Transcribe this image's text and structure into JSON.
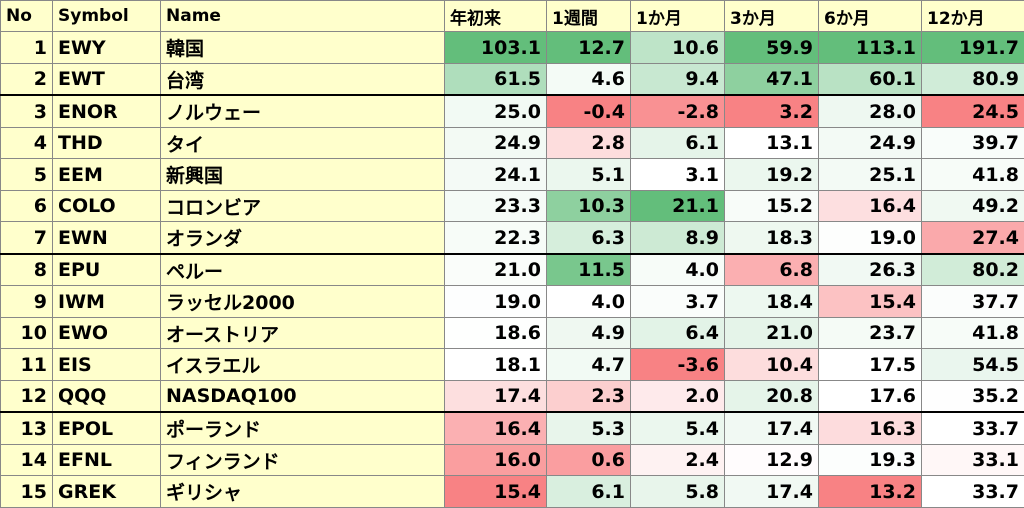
{
  "table": {
    "header": [
      "No",
      "Symbol",
      "Name",
      "年初来",
      "1週間",
      "1か月",
      "3か月",
      "6か月",
      "12か月"
    ],
    "rows": [
      [
        "1",
        "EWY",
        "韓国",
        "103.1",
        "12.7",
        "10.6",
        "59.9",
        "113.1",
        "191.7"
      ],
      [
        "2",
        "EWT",
        "台湾",
        "61.5",
        "4.6",
        "9.4",
        "47.1",
        "60.1",
        "80.9"
      ],
      [
        "3",
        "ENOR",
        "ノルウェー",
        "25.0",
        "-0.4",
        "-2.8",
        "3.2",
        "28.0",
        "24.5"
      ],
      [
        "4",
        "THD",
        "タイ",
        "24.9",
        "2.8",
        "6.1",
        "13.1",
        "24.9",
        "39.7"
      ],
      [
        "5",
        "EEM",
        "新興国",
        "24.1",
        "5.1",
        "3.1",
        "19.2",
        "25.1",
        "41.8"
      ],
      [
        "6",
        "COLO",
        "コロンビア",
        "23.3",
        "10.3",
        "21.1",
        "15.2",
        "16.4",
        "49.2"
      ],
      [
        "7",
        "EWN",
        "オランダ",
        "22.3",
        "6.3",
        "8.9",
        "18.3",
        "19.0",
        "27.4"
      ],
      [
        "8",
        "EPU",
        "ペルー",
        "21.0",
        "11.5",
        "4.0",
        "6.8",
        "26.3",
        "80.2"
      ],
      [
        "9",
        "IWM",
        "ラッセル2000",
        "19.0",
        "4.0",
        "3.7",
        "18.4",
        "15.4",
        "37.7"
      ],
      [
        "10",
        "EWO",
        "オーストリア",
        "18.6",
        "4.9",
        "6.4",
        "21.0",
        "23.7",
        "41.8"
      ],
      [
        "11",
        "EIS",
        "イスラエル",
        "18.1",
        "4.7",
        "-3.6",
        "10.4",
        "17.5",
        "54.5"
      ],
      [
        "12",
        "QQQ",
        "NASDAQ100",
        "17.4",
        "2.3",
        "2.0",
        "20.8",
        "17.6",
        "35.2"
      ],
      [
        "13",
        "EPOL",
        "ポーランド",
        "16.4",
        "5.3",
        "5.4",
        "17.4",
        "16.3",
        "33.7"
      ],
      [
        "14",
        "EFNL",
        "フィンランド",
        "16.0",
        "0.6",
        "2.4",
        "12.9",
        "19.3",
        "33.1"
      ],
      [
        "15",
        "GREK",
        "ギリシャ",
        "15.4",
        "6.1",
        "5.8",
        "17.4",
        "13.2",
        "33.7"
      ]
    ]
  }
}
